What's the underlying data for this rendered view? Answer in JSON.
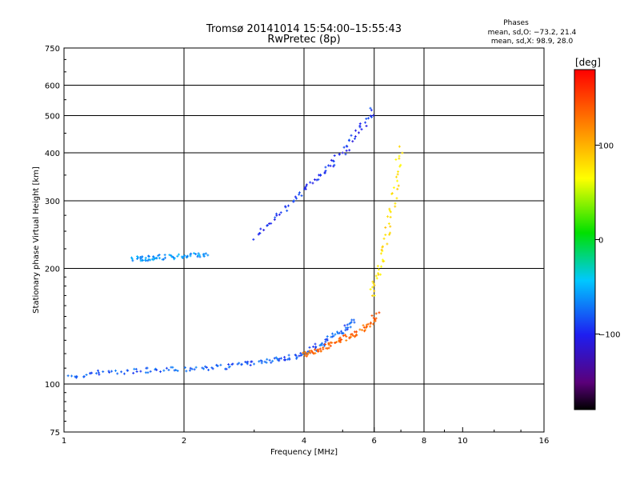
{
  "chart_data": {
    "type": "scatter",
    "title": "Tromsø 20141014 15:54:00–15:55:43",
    "subtitle": "RwPretec (8p)",
    "xlabel": "Frequency [MHz]",
    "ylabel": "Stationary phase Virtual Height [km]",
    "x_scale": "log",
    "y_scale": "log",
    "xlim": [
      1,
      16
    ],
    "ylim": [
      75,
      750
    ],
    "x_ticks": [
      "1",
      "2",
      "4",
      "6",
      "8",
      "10",
      "16"
    ],
    "y_ticks": [
      "75",
      "100",
      "200",
      "300",
      "400",
      "500",
      "600",
      "750"
    ],
    "x_ticks_values": [
      1,
      2,
      4,
      6,
      8,
      10,
      16
    ],
    "y_ticks_values": [
      75,
      100,
      200,
      300,
      400,
      500,
      600,
      750
    ],
    "x_grid": [
      2,
      4,
      6,
      8
    ],
    "y_grid": [
      100,
      200,
      300,
      400,
      500,
      600
    ],
    "grid": true,
    "phases_box": {
      "heading": "Phases",
      "line1": "mean, sd,O: −73.2, 21.4",
      "line2": "mean, sd,X:  98.9, 28.0"
    },
    "colorbar": {
      "label": "[deg]",
      "range": [
        -180,
        180
      ],
      "ticks": [
        "100",
        "0",
        "−100"
      ],
      "ticks_values": [
        100,
        0,
        -100
      ],
      "colormap": "rainbow"
    },
    "traces": [
      {
        "description": "O-mode lower trace",
        "x": [
          1.02,
          1.2,
          1.5,
          1.8,
          2.2,
          2.6,
          3.0,
          3.4,
          3.8,
          4.2,
          4.6,
          5.0,
          5.4
        ],
        "y": [
          104,
          107,
          108,
          109,
          110,
          111,
          114,
          116,
          118,
          123,
          130,
          138,
          148
        ],
        "phase": -80
      },
      {
        "description": "X-mode lower trace",
        "x": [
          4.0,
          4.3,
          4.6,
          5.0,
          5.4,
          5.8,
          6.1
        ],
        "y": [
          119,
          122,
          126,
          131,
          135,
          142,
          152
        ],
        "phase": 135
      },
      {
        "description": "cluster near 5.8-7.0 MHz",
        "x": [
          5.9,
          6.2,
          6.5,
          6.8,
          7.0
        ],
        "y": [
          170,
          200,
          250,
          320,
          420
        ],
        "phase": 80
      },
      {
        "description": "E-region streak 1.5-2.2 MHz",
        "x": [
          1.5,
          1.6,
          1.7,
          1.9,
          2.1,
          2.3
        ],
        "y": [
          212,
          212,
          214,
          214,
          216,
          218
        ],
        "phase": -60
      },
      {
        "description": "spread F 3.0-6.0 MHz",
        "x": [
          3.0,
          3.5,
          4.0,
          4.5,
          5.0,
          5.5,
          6.0
        ],
        "y": [
          240,
          280,
          320,
          360,
          400,
          460,
          520
        ],
        "phase": -95
      }
    ]
  }
}
